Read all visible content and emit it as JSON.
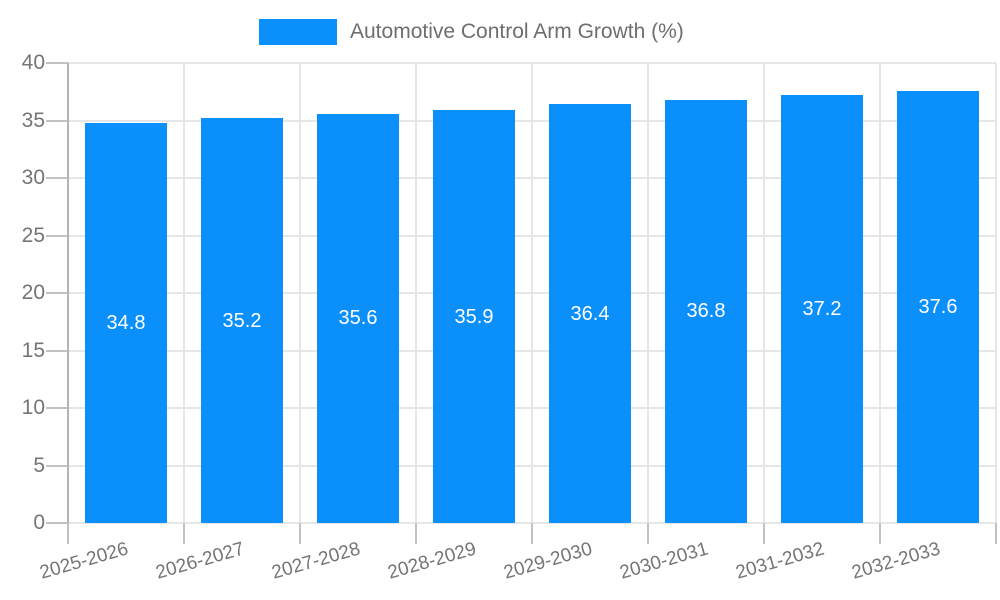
{
  "legend": {
    "label": "Automotive Control Arm Growth (%)"
  },
  "chart_data": {
    "type": "bar",
    "title": "",
    "categories": [
      "2025-2026",
      "2026-2027",
      "2027-2028",
      "2028-2029",
      "2029-2030",
      "2030-2031",
      "2031-2032",
      "2032-2033"
    ],
    "series": [
      {
        "name": "Automotive Control Arm Growth (%)",
        "values": [
          34.8,
          35.2,
          35.6,
          35.9,
          36.4,
          36.8,
          37.2,
          37.6
        ]
      }
    ],
    "value_labels": [
      "34.8",
      "35.2",
      "35.6",
      "35.9",
      "36.4",
      "36.8",
      "37.2",
      "37.6"
    ],
    "xlabel": "",
    "ylabel": "",
    "ylim": [
      0,
      40
    ],
    "yticks": [
      0,
      5,
      10,
      15,
      20,
      25,
      30,
      35,
      40
    ],
    "grid": true,
    "legend_position": "top",
    "colors": {
      "bar": "#0b90fb",
      "gridline": "#e6e6e6",
      "tick": "#c2c2c2",
      "axis_line": "#b3b3b3",
      "axis_text": "#757575",
      "legend_text": "#6e6e6e",
      "value_text": "#ffffff",
      "background": "#ffffff"
    }
  }
}
